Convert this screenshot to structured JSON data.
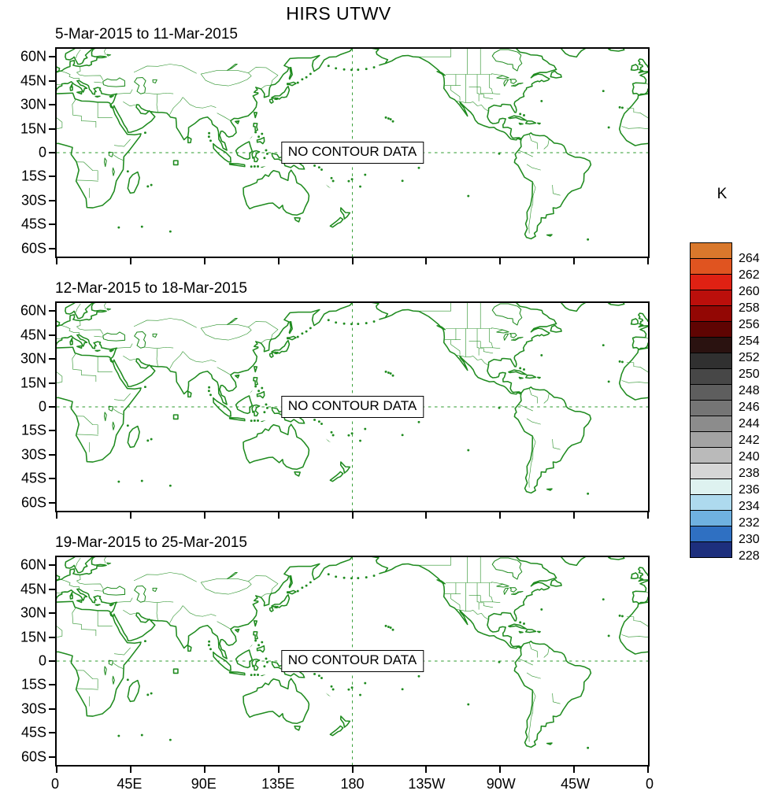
{
  "title": "HIRS UTWV",
  "panels": [
    {
      "subtitle": "5-Mar-2015 to 11-Mar-2015",
      "no_data_label": "NO CONTOUR DATA"
    },
    {
      "subtitle": "12-Mar-2015 to 18-Mar-2015",
      "no_data_label": "NO CONTOUR DATA"
    },
    {
      "subtitle": "19-Mar-2015 to 25-Mar-2015",
      "no_data_label": "NO CONTOUR DATA"
    }
  ],
  "y_axis": {
    "ticks": [
      "60N",
      "45N",
      "30N",
      "15N",
      "0",
      "15S",
      "30S",
      "45S",
      "60S"
    ]
  },
  "x_axis": {
    "ticks": [
      "0",
      "45E",
      "90E",
      "135E",
      "180",
      "135W",
      "90W",
      "45W",
      "0"
    ]
  },
  "colorbar": {
    "unit": "K",
    "labels": [
      "264",
      "262",
      "260",
      "258",
      "256",
      "254",
      "252",
      "250",
      "248",
      "246",
      "244",
      "242",
      "240",
      "238",
      "236",
      "234",
      "232",
      "230",
      "228"
    ],
    "colors": [
      "#d9782c",
      "#e05420",
      "#df2113",
      "#bb0f0b",
      "#930704",
      "#5f0402",
      "#2a1210",
      "#303030",
      "#474747",
      "#5e5e5e",
      "#757575",
      "#8c8c8c",
      "#a3a3a3",
      "#bababa",
      "#d6d6d6",
      "#def2f0",
      "#aedaee",
      "#6fb1e0",
      "#2f70c2",
      "#1d2f7d"
    ]
  },
  "map": {
    "coast_color": "#1f8b1f",
    "border_color": "#2e942e",
    "grid_color": "#2e9b2e",
    "frame_color": "#000000"
  },
  "chart_data": {
    "type": "heatmap",
    "title": "HIRS UTWV",
    "subtitle_panels": [
      "5-Mar-2015 to 11-Mar-2015",
      "12-Mar-2015 to 18-Mar-2015",
      "19-Mar-2015 to 25-Mar-2015"
    ],
    "status": "NO CONTOUR DATA",
    "values": [],
    "x": {
      "ticks": [
        "0",
        "45E",
        "90E",
        "135E",
        "180",
        "135W",
        "90W",
        "45W",
        "0"
      ],
      "range_deg": [
        0,
        360
      ]
    },
    "y": {
      "ticks": [
        "60N",
        "45N",
        "30N",
        "15N",
        "0",
        "15S",
        "30S",
        "45S",
        "60S"
      ],
      "range_deg": [
        -65,
        65
      ]
    },
    "colorbar_unit": "K",
    "colorbar_levels": [
      228,
      230,
      232,
      234,
      236,
      238,
      240,
      242,
      244,
      246,
      248,
      250,
      252,
      254,
      256,
      258,
      260,
      262,
      264
    ],
    "grid": {
      "dashed_equator": true,
      "dashed_meridian_180": true
    },
    "legend_position": "right",
    "projection": "cylindrical-equidistant, 0-360E"
  }
}
